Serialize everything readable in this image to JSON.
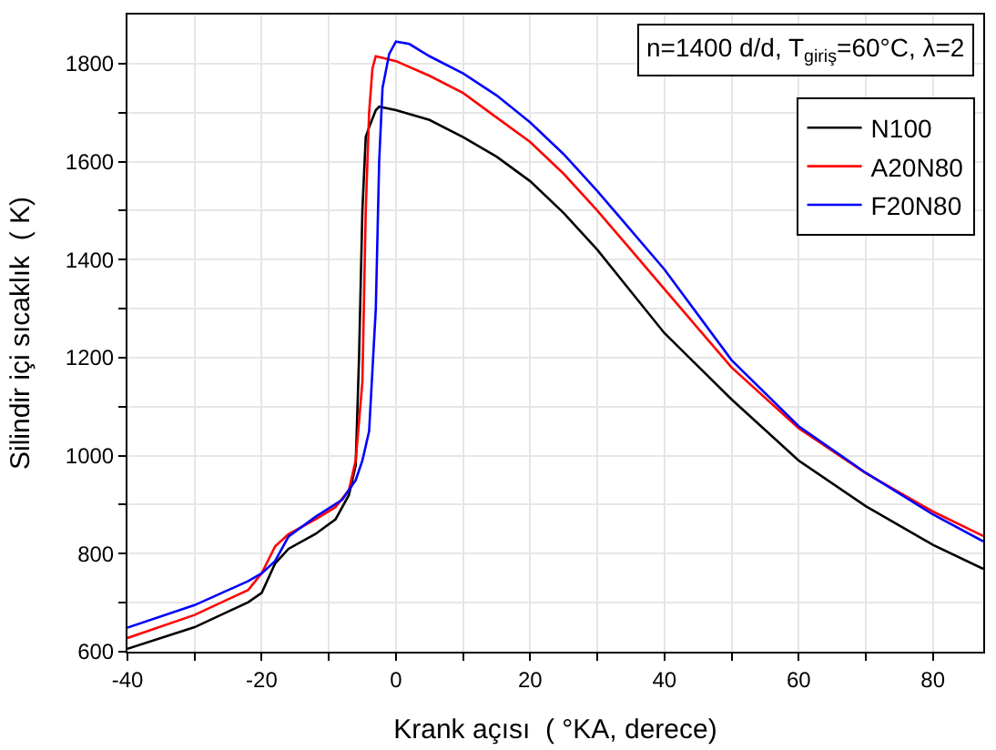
{
  "chart_data": {
    "type": "line",
    "xlabel": "Krank açısı  ( °KA, derece)",
    "ylabel": "Silindir içi sıcaklık  ( K)",
    "annotations": [
      "n=1400 d/d, T$_{giriş}$=60°C, λ=2"
    ],
    "xlim": [
      -40,
      87.5
    ],
    "ylim": [
      600,
      1900
    ],
    "xticks": [
      -40,
      {
        "value": -30,
        "label": null
      },
      -20,
      {
        "value": -10,
        "label": null
      },
      0,
      {
        "value": 10,
        "label": null
      },
      20,
      {
        "value": 30,
        "label": null
      },
      40,
      {
        "value": 50,
        "label": null
      },
      60,
      {
        "value": 70,
        "label": null
      },
      80
    ],
    "yticks": [
      600,
      {
        "value": 700,
        "label": null
      },
      800,
      {
        "value": 900,
        "label": null
      },
      1000,
      {
        "value": 1100,
        "label": null
      },
      1200,
      {
        "value": 1300,
        "label": null
      },
      1400,
      {
        "value": 1500,
        "label": null
      },
      1600,
      {
        "value": 1700,
        "label": null
      },
      1800
    ],
    "grid": true,
    "legend": "top right",
    "marker": "none",
    "line_style": "solid",
    "series": [
      {
        "name": "N100",
        "color": "#000000",
        "x": [
          -40,
          -30,
          -22,
          -20,
          -18,
          -16,
          -12,
          -9,
          -7,
          -6,
          -5.5,
          -5,
          -4.5,
          -4,
          -3,
          -2.5,
          0,
          5,
          10,
          15,
          20,
          25,
          30,
          35,
          40,
          50,
          60,
          70,
          80,
          87.5
        ],
        "values": [
          606,
          650,
          701,
          720,
          780,
          810,
          840,
          870,
          920,
          980,
          1200,
          1500,
          1650,
          1670,
          1705,
          1712,
          1705,
          1685,
          1650,
          1610,
          1560,
          1495,
          1420,
          1335,
          1250,
          1115,
          990,
          897,
          818,
          769
        ]
      },
      {
        "name": "A20N80",
        "color": "#ff0000",
        "x": [
          -40,
          -30,
          -22,
          -20,
          -18,
          -16,
          -12,
          -9,
          -7,
          -6,
          -5,
          -4.5,
          -4,
          -3.5,
          -3,
          -1.5,
          0,
          5,
          10,
          15,
          20,
          25,
          30,
          35,
          40,
          50,
          60,
          70,
          80,
          87.5
        ],
        "values": [
          628,
          675,
          726,
          760,
          815,
          840,
          870,
          895,
          930,
          990,
          1150,
          1500,
          1700,
          1790,
          1815,
          1810,
          1805,
          1775,
          1740,
          1690,
          1640,
          1575,
          1500,
          1420,
          1340,
          1180,
          1056,
          964,
          886,
          836
        ]
      },
      {
        "name": "F20N80",
        "color": "#0000ff",
        "x": [
          -40,
          -30,
          -22,
          -20,
          -18,
          -16,
          -12,
          -8,
          -6,
          -5,
          -4,
          -3,
          -2.5,
          -2,
          -1,
          0,
          2,
          5,
          10,
          15,
          20,
          25,
          30,
          35,
          40,
          50,
          60,
          70,
          80,
          87.5
        ],
        "values": [
          649,
          695,
          744,
          760,
          785,
          835,
          875,
          910,
          950,
          990,
          1050,
          1300,
          1600,
          1750,
          1820,
          1845,
          1840,
          1815,
          1780,
          1735,
          1680,
          1615,
          1540,
          1460,
          1380,
          1195,
          1060,
          965,
          880,
          825
        ]
      }
    ]
  }
}
